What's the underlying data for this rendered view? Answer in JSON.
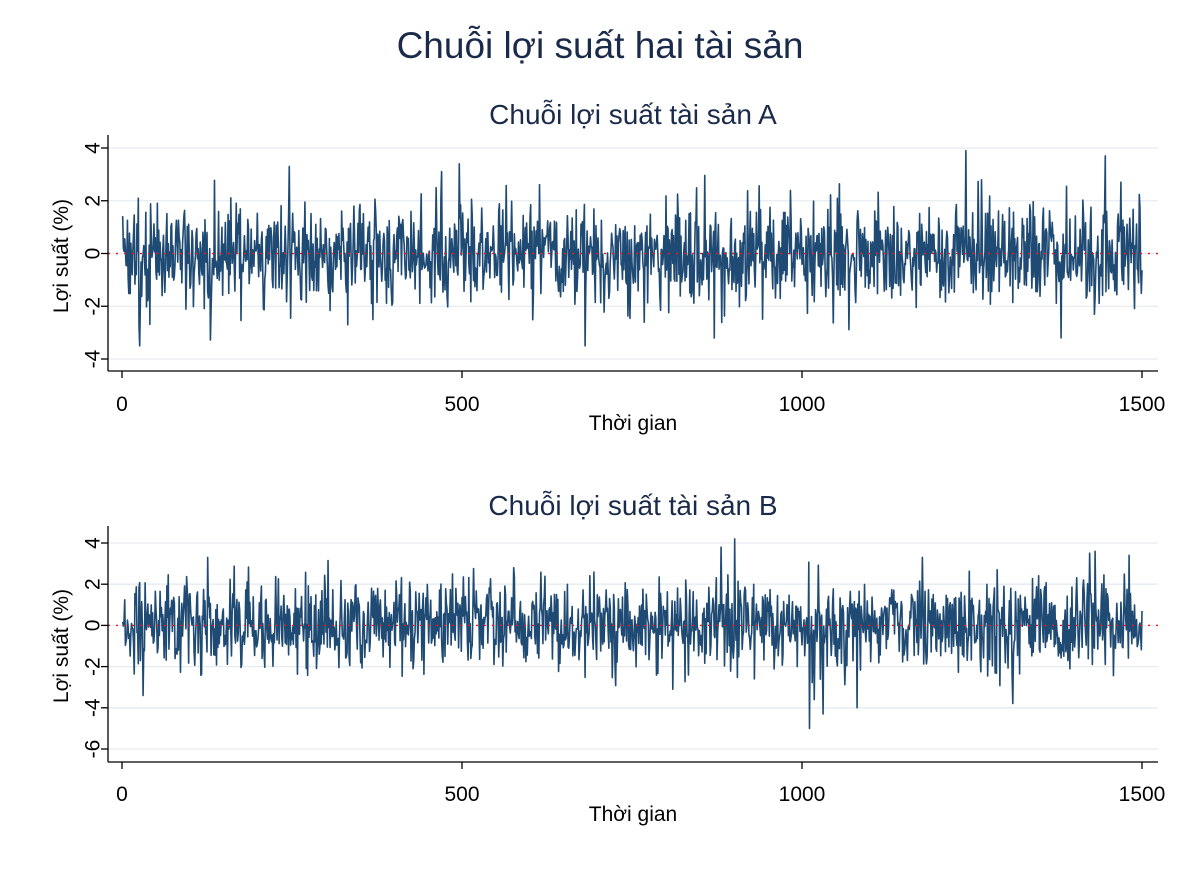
{
  "figure_title": "Chuỗi lợi suất hai tài sản",
  "chart_data": [
    {
      "type": "line",
      "title": "Chuỗi lợi suất tài sản A",
      "xlabel": "Thời gian",
      "ylabel": "Lợi suất (%)",
      "xlim": [
        0,
        1500
      ],
      "ylim": [
        -4,
        4
      ],
      "xticks": [
        0,
        500,
        1000,
        1500
      ],
      "yticks": [
        -4,
        -2,
        0,
        2,
        4
      ],
      "x_ticklabels": [
        "0",
        "500",
        "1000",
        "1500"
      ],
      "y_ticklabels": [
        "-4",
        "-2",
        "0",
        "2",
        "4"
      ],
      "reference_line_y": 0,
      "grid": true,
      "line_color": "#1f4a73",
      "reference_color": "#e02020",
      "n_points": 1500,
      "values_stat": {
        "mean": 0.0,
        "std": 1.0,
        "min": -3.5,
        "max": 3.9
      },
      "notable_points": [
        [
          25,
          -3.5
        ],
        [
          245,
          3.3
        ],
        [
          495,
          3.4
        ],
        [
          680,
          -3.5
        ],
        [
          870,
          -3.2
        ],
        [
          1240,
          3.9
        ],
        [
          1380,
          -3.2
        ],
        [
          1445,
          3.7
        ]
      ]
    },
    {
      "type": "line",
      "title": "Chuỗi lợi suất tài sản B",
      "xlabel": "Thời gian",
      "ylabel": "Lợi suất (%)",
      "xlim": [
        0,
        1500
      ],
      "ylim": [
        -6,
        4
      ],
      "xticks": [
        0,
        500,
        1000,
        1500
      ],
      "yticks": [
        -6,
        -4,
        -2,
        0,
        2,
        4
      ],
      "x_ticklabels": [
        "0",
        "500",
        "1000",
        "1500"
      ],
      "y_ticklabels": [
        "-6",
        "-4",
        "-2",
        "0",
        "2",
        "4"
      ],
      "reference_line_y": 0,
      "grid": true,
      "line_color": "#1f4a73",
      "reference_color": "#e02020",
      "n_points": 1500,
      "values_stat": {
        "mean": 0.0,
        "std": 1.1,
        "min": -5.0,
        "max": 4.2
      },
      "notable_points": [
        [
          30,
          -3.4
        ],
        [
          125,
          3.3
        ],
        [
          880,
          3.8
        ],
        [
          900,
          4.2
        ],
        [
          1010,
          -5.0
        ],
        [
          1030,
          -4.3
        ],
        [
          1080,
          -4.0
        ],
        [
          1430,
          3.6
        ],
        [
          1480,
          3.4
        ]
      ]
    }
  ]
}
